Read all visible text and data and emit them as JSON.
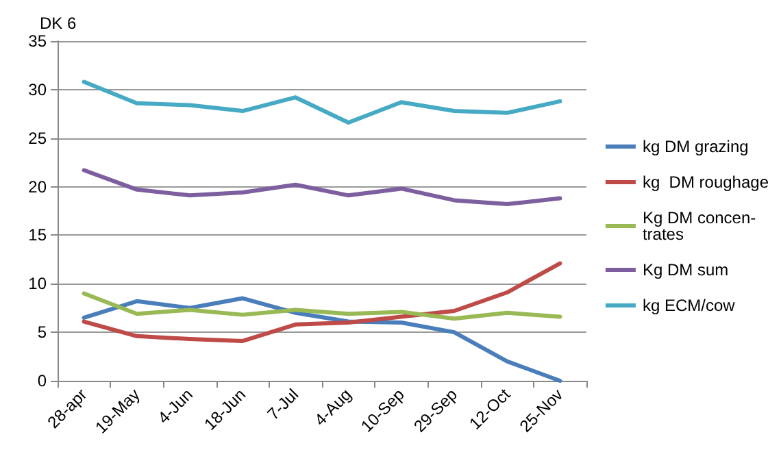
{
  "chart_data": {
    "type": "line",
    "title": "DK 6",
    "categories": [
      "28-apr",
      "19-May",
      "4-Jun",
      "18-Jun",
      "7-Jul",
      "4-Aug",
      "10-Sep",
      "29-Sep",
      "12-Oct",
      "25-Nov"
    ],
    "series": [
      {
        "name": "kg DM grazing",
        "color": "#4a7ebb",
        "values": [
          6.5,
          8.2,
          7.5,
          8.5,
          7.0,
          6.1,
          6.0,
          5.0,
          2.0,
          0
        ]
      },
      {
        "name": "kg  DM roughage",
        "color": "#be4b48",
        "values": [
          6.1,
          4.6,
          4.3,
          4.1,
          5.8,
          6.0,
          6.6,
          7.2,
          9.1,
          12.1
        ]
      },
      {
        "name": "Kg DM concen-\ntrates",
        "color": "#98b954",
        "values": [
          9.0,
          6.9,
          7.3,
          6.8,
          7.3,
          6.9,
          7.1,
          6.4,
          7.0,
          6.6
        ]
      },
      {
        "name": "Kg DM sum",
        "color": "#7d5fa0",
        "values": [
          21.7,
          19.7,
          19.1,
          19.4,
          20.2,
          19.1,
          19.8,
          18.6,
          18.2,
          18.8
        ]
      },
      {
        "name": "kg ECM/cow",
        "color": "#46aac5",
        "values": [
          30.8,
          28.6,
          28.4,
          27.8,
          29.2,
          26.6,
          28.7,
          27.8,
          27.6,
          28.8
        ]
      }
    ],
    "ylim": [
      0,
      35
    ],
    "yticks": [
      0,
      5,
      10,
      15,
      20,
      25,
      30,
      35
    ],
    "grid": "y",
    "legend": "right",
    "marker": "none",
    "line_style": "solid"
  }
}
